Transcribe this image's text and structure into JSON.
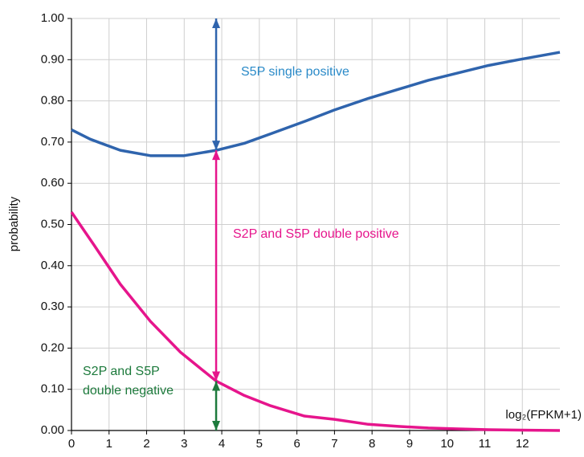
{
  "chart_data": {
    "type": "line",
    "xlabel": "log₂(FPKM+1)",
    "ylabel": "probability",
    "xlim": [
      0,
      13
    ],
    "ylim": [
      0,
      1
    ],
    "xticks": [
      0,
      1,
      2,
      3,
      4,
      5,
      6,
      7,
      8,
      9,
      10,
      11,
      12
    ],
    "yticks": [
      {
        "value": 0,
        "label": "0.00"
      },
      {
        "value": 0.1,
        "label": "0.10"
      },
      {
        "value": 0.2,
        "label": "0.20"
      },
      {
        "value": 0.3,
        "label": "0.30"
      },
      {
        "value": 0.4,
        "label": "0.40"
      },
      {
        "value": 0.5,
        "label": "0.50"
      },
      {
        "value": 0.6,
        "label": "0.60"
      },
      {
        "value": 0.7,
        "label": "0.70"
      },
      {
        "value": 0.8,
        "label": "0.80"
      },
      {
        "value": 0.9,
        "label": "0.90"
      },
      {
        "value": 1,
        "label": "1.00"
      }
    ],
    "grid": true,
    "series": [
      {
        "color": "#2f64ad",
        "x": [
          0,
          0.5,
          1.3,
          2.1,
          3,
          3.85,
          4.6,
          5.3,
          6.2,
          7,
          7.9,
          8.7,
          9.5,
          10.3,
          11.1,
          11.9,
          13
        ],
        "values": [
          0.73,
          0.707,
          0.68,
          0.667,
          0.667,
          0.68,
          0.697,
          0.72,
          0.75,
          0.778,
          0.806,
          0.828,
          0.85,
          0.868,
          0.886,
          0.9,
          0.918
        ]
      },
      {
        "color": "#e6158c",
        "x": [
          0,
          0.6,
          1.3,
          2.1,
          2.9,
          3.85,
          4.6,
          5.3,
          6.2,
          7,
          7.9,
          8.7,
          9.5,
          10.3,
          11.1,
          11.9,
          13
        ],
        "values": [
          0.53,
          0.45,
          0.355,
          0.265,
          0.19,
          0.12,
          0.085,
          0.06,
          0.035,
          0.027,
          0.015,
          0.01,
          0.006,
          0.004,
          0.002,
          0.001,
          0
        ]
      }
    ],
    "arrows": [
      {
        "x": 3.85,
        "y": [
          1,
          0.68
        ],
        "color": "#2f64ad"
      },
      {
        "x": 3.85,
        "y": [
          0.68,
          0.12
        ],
        "color": "#e6158c"
      },
      {
        "x": 3.85,
        "y": [
          0.12,
          0
        ],
        "color": "#1d7a3c"
      }
    ],
    "annotations": [
      {
        "text": [
          "S5P single positive"
        ],
        "color": "#2a8ac8"
      },
      {
        "text": [
          "S2P and S5P double positive"
        ],
        "color": "#e6158c"
      },
      {
        "text": [
          "S2P and S5P",
          "double negative"
        ],
        "color": "#1d7a3c"
      }
    ]
  }
}
